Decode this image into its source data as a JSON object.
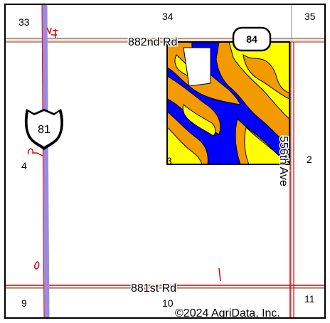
{
  "map": {
    "sections": {
      "nw_top": "33",
      "n_top": "34",
      "ne_top": "35",
      "west_mid": "4",
      "field_corner": "3",
      "east_mid": "2",
      "sw_bottom": "9",
      "s_bottom": "10",
      "se_bottom": "11"
    },
    "roads": {
      "north_road": "882nd Rd",
      "south_road": "881st Rd",
      "east_road": "556th Ave"
    },
    "shields": {
      "state_route": "84",
      "us_route": "81"
    },
    "copyright": "©2024 AgriData, Inc.",
    "colors": {
      "soil_blue": "#0000ff",
      "soil_orange": "#f39a00",
      "soil_yellow": "#ffff00",
      "road_brown": "#a5765a",
      "highway_purple": "#9a8ae0",
      "boundary_red": "#e00000",
      "field_outline": "#000000"
    }
  }
}
